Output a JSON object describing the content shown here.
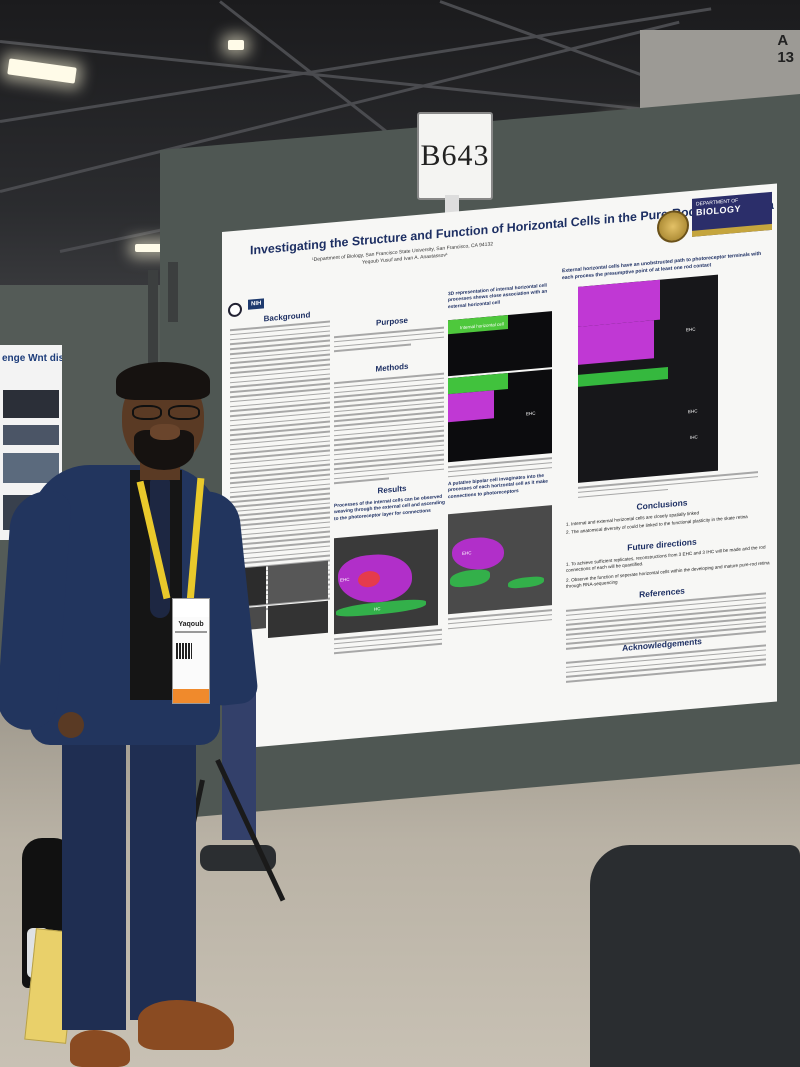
{
  "scene": {
    "booth_number": "B643",
    "corner_sign": [
      "A",
      "13"
    ]
  },
  "left_poster": {
    "title_fragment": "enge Wnt dispersal"
  },
  "poster": {
    "title": "Investigating the Structure and Function of Horizontal Cells in the Pure-Rod Skate Retina",
    "affiliation": "¹Department of Biology, San Francisco State University, San Francisco, CA 94132",
    "authors": "Yeqoub Yusuf and Ivan A. Anastassov¹",
    "dept_logo_small": "DEPARTMENT OF",
    "dept_logo_big": "BIOLOGY",
    "nih_logo": "NIH",
    "sections": {
      "background": "Background",
      "purpose": "Purpose",
      "methods": "Methods",
      "results": "Results",
      "conclusions": "Conclusions",
      "future": "Future directions",
      "references": "References",
      "acknowledgements": "Acknowledgements"
    },
    "results_subhead": "Processes of the internal cells can be observed weaving through the external cell and ascending to the photoreceptor layer for connections",
    "rep3d_head": "3D representation of internal horizontal cell processes shows close association with an external horizontal cell",
    "external_head": "External horizontal cells have an unobstructed path to photoreceptor terminals with each process the presumptive point of at least one rod contact",
    "bipolar_head": "A putative bipolar cell invaginates into the processes of each horizontal cell as it make connections to photoreceptors",
    "fig_labels": {
      "internal": "Internal horizontal cell",
      "ehc": "EHC",
      "ihc": "IHC",
      "hc": "HC"
    },
    "conclusions_items": [
      "1. Internal and external horizontal cells are closely spatially linked",
      "2. The anatomical diversity of could be linked to the functional plasticity in the skate retina"
    ],
    "future_items": [
      "1. To achieve sufficient replicates, reconstructions from 3 EHC and 3 IHC will be made and the rod connections of each will be quantified.",
      "2. Observe the function of seperate horizontal cells within the developing and mature pure-rod retina through RNA-sequencing"
    ]
  },
  "badge": {
    "name": "Yaqoub"
  }
}
